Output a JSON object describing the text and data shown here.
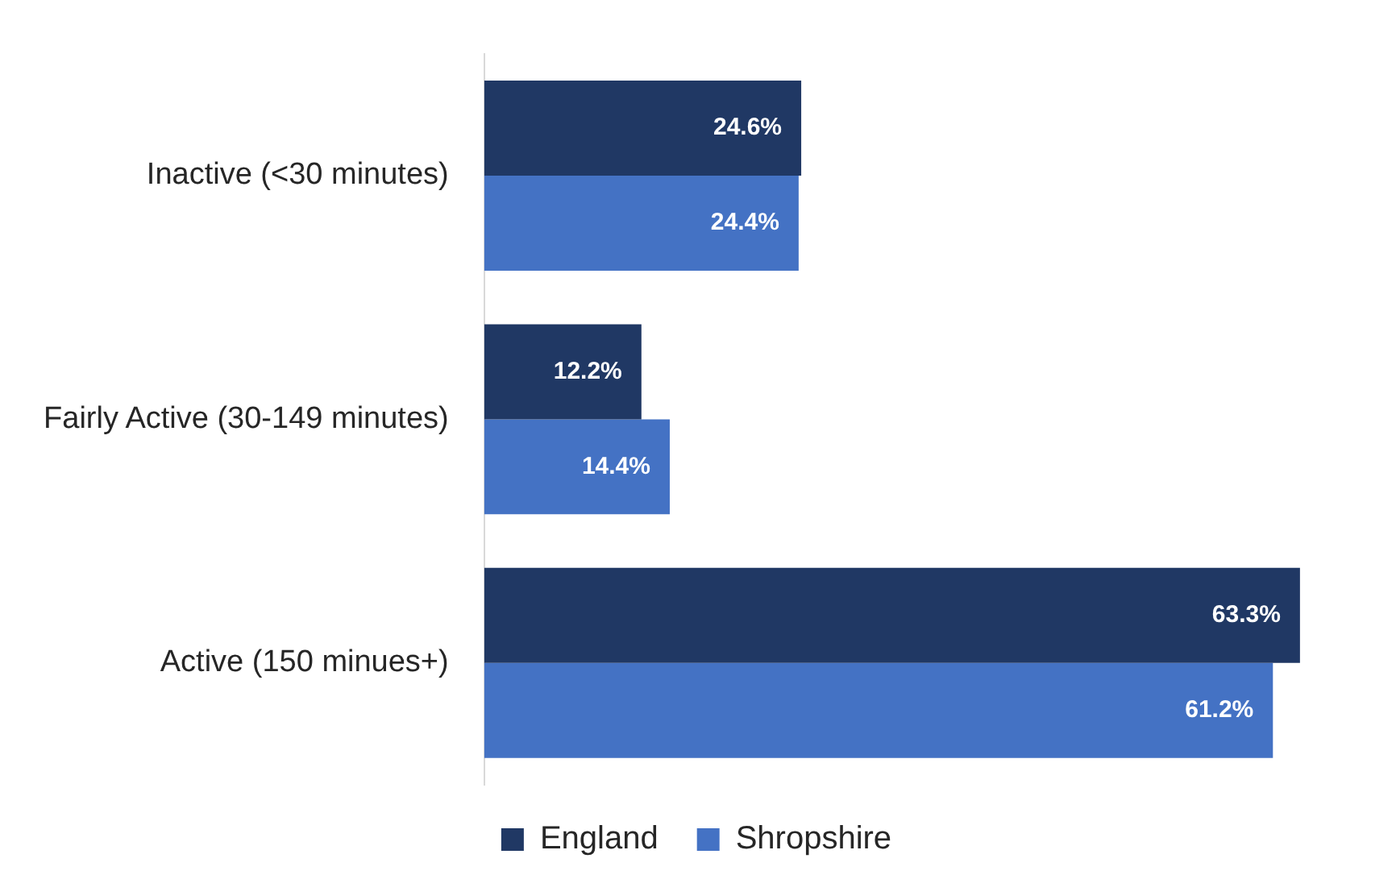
{
  "chart_data": {
    "type": "bar",
    "orientation": "horizontal",
    "categories": [
      "Inactive (<30 minutes)",
      "Fairly Active (30-149 minutes)",
      "Active (150 minues+)"
    ],
    "series": [
      {
        "name": "England",
        "color": "#203864",
        "values": [
          24.6,
          12.2,
          63.3
        ],
        "value_labels": [
          "24.6%",
          "12.2%",
          "63.3%"
        ]
      },
      {
        "name": "Shropshire",
        "color": "#4472c4",
        "values": [
          24.4,
          14.4,
          61.2
        ],
        "value_labels": [
          "24.4%",
          "14.4%",
          "61.2%"
        ]
      }
    ],
    "grid": false,
    "legend": "bottom",
    "tick_labels": "y"
  }
}
